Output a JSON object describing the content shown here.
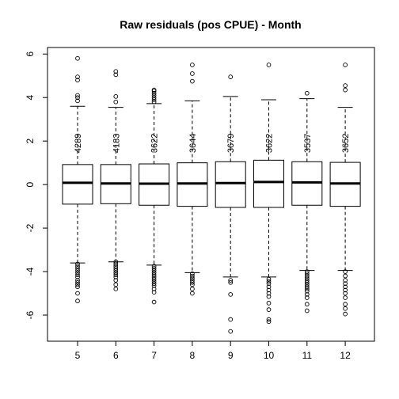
{
  "chart_data": {
    "type": "box",
    "title": "Raw residuals (pos CPUE) - Month",
    "xlabel": "",
    "ylabel": "",
    "ylim": [
      -7.2,
      6.3
    ],
    "yticks": [
      6,
      4,
      2,
      0,
      -2,
      -4,
      -6
    ],
    "grid": false,
    "categories": [
      "5",
      "6",
      "7",
      "8",
      "9",
      "10",
      "11",
      "12"
    ],
    "boxes": [
      {
        "label": "5",
        "count": "4289",
        "q1": -0.9,
        "median": 0.08,
        "q3": 0.92,
        "lower_whisker": -3.6,
        "upper_whisker": 3.6,
        "outliers_high": [
          5.8,
          4.95,
          4.8,
          4.1,
          4.0,
          3.85
        ],
        "outliers_low": [
          -3.65,
          -3.75,
          -3.85,
          -3.95,
          -4.05,
          -4.15,
          -4.25,
          -4.4,
          -4.5,
          -4.6,
          -4.7,
          -5.0,
          -5.35
        ]
      },
      {
        "label": "6",
        "count": "4183",
        "q1": -0.88,
        "median": 0.05,
        "q3": 0.92,
        "lower_whisker": -3.55,
        "upper_whisker": 3.55,
        "outliers_high": [
          5.2,
          5.05,
          4.05,
          3.8
        ],
        "outliers_low": [
          -3.55,
          -3.65,
          -3.75,
          -3.85,
          -3.95,
          -4.05,
          -4.15,
          -4.25,
          -4.4,
          -4.6,
          -4.8
        ]
      },
      {
        "label": "7",
        "count": "3622",
        "q1": -0.95,
        "median": 0.04,
        "q3": 0.95,
        "lower_whisker": -3.7,
        "upper_whisker": 3.72,
        "outliers_high": [
          4.35,
          4.3,
          4.2,
          4.1,
          4.0,
          3.9,
          3.8
        ],
        "outliers_low": [
          -3.75,
          -3.85,
          -3.95,
          -4.05,
          -4.15,
          -4.25,
          -4.35,
          -4.45,
          -4.55,
          -4.65,
          -4.8,
          -4.95,
          -5.4
        ]
      },
      {
        "label": "8",
        "count": "3644",
        "q1": -1.0,
        "median": 0.05,
        "q3": 1.0,
        "lower_whisker": -4.05,
        "upper_whisker": 3.85,
        "outliers_high": [
          5.5,
          5.1,
          4.75
        ],
        "outliers_low": [
          -4.1,
          -4.2,
          -4.3,
          -4.4,
          -4.5,
          -4.6,
          -4.8,
          -5.0
        ]
      },
      {
        "label": "9",
        "count": "3679",
        "q1": -1.05,
        "median": 0.07,
        "q3": 1.05,
        "lower_whisker": -4.25,
        "upper_whisker": 4.05,
        "outliers_high": [
          4.95
        ],
        "outliers_low": [
          -4.4,
          -4.5,
          -5.05,
          -6.2,
          -6.75
        ]
      },
      {
        "label": "10",
        "count": "3622",
        "q1": -1.05,
        "median": 0.12,
        "q3": 1.12,
        "lower_whisker": -4.25,
        "upper_whisker": 3.9,
        "outliers_high": [
          5.5
        ],
        "outliers_low": [
          -4.35,
          -4.45,
          -4.55,
          -4.7,
          -4.85,
          -5.0,
          -5.15,
          -5.45,
          -5.75,
          -6.2,
          -6.3
        ]
      },
      {
        "label": "11",
        "count": "3537",
        "q1": -0.95,
        "median": 0.1,
        "q3": 1.05,
        "lower_whisker": -3.95,
        "upper_whisker": 3.95,
        "outliers_high": [
          4.2
        ],
        "outliers_low": [
          -4.0,
          -4.1,
          -4.2,
          -4.3,
          -4.4,
          -4.5,
          -4.6,
          -4.7,
          -4.8,
          -4.9,
          -5.05,
          -5.2,
          -5.5,
          -5.8
        ]
      },
      {
        "label": "12",
        "count": "3652",
        "q1": -1.0,
        "median": 0.05,
        "q3": 1.02,
        "lower_whisker": -3.95,
        "upper_whisker": 3.55,
        "outliers_high": [
          5.5,
          4.55,
          4.35
        ],
        "outliers_low": [
          -4.0,
          -4.2,
          -4.4,
          -4.55,
          -4.7,
          -4.85,
          -5.0,
          -5.2,
          -5.5,
          -5.7,
          -5.95
        ]
      }
    ]
  }
}
